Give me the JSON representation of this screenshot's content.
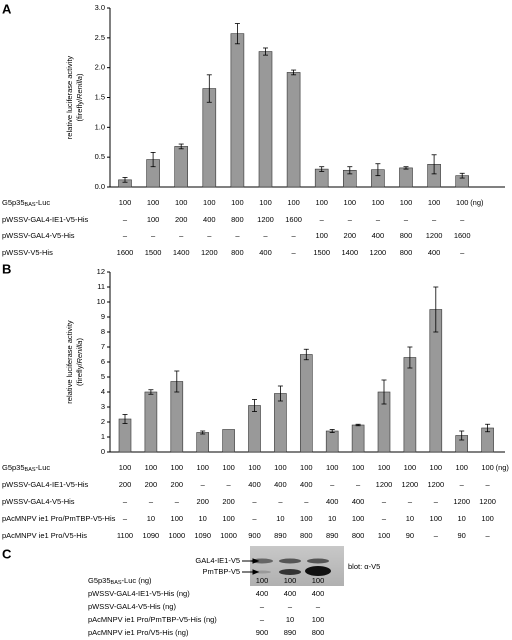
{
  "panel_labels": [
    "A",
    "B",
    "C"
  ],
  "chart_data": [
    {
      "type": "bar",
      "ylabel": "relative luciferase activity",
      "ylabel_parts": [
        "(firefly/",
        "Renilla",
        ")"
      ],
      "color": "#999999",
      "values": [
        0.12,
        0.46,
        0.68,
        1.65,
        2.57,
        2.27,
        1.92,
        0.3,
        0.28,
        0.29,
        0.32,
        0.38,
        0.19
      ],
      "errors": [
        0.04,
        0.12,
        0.04,
        0.23,
        0.17,
        0.06,
        0.04,
        0.04,
        0.06,
        0.1,
        0.02,
        0.16,
        0.04
      ],
      "ylim": [
        0,
        3
      ],
      "yticks": [
        {
          "value": 0,
          "label": "0.0"
        },
        0.5,
        {
          "value": 1,
          "label": "1.0"
        },
        1.5,
        {
          "value": 2,
          "label": "2.0"
        },
        2.5,
        {
          "value": 3,
          "label": "3.0"
        }
      ]
    },
    {
      "type": "bar",
      "ylabel": "relative luciferase activity",
      "ylabel_parts": [
        "(firefly/",
        "Renilla",
        ")"
      ],
      "color": "#999999",
      "values": [
        2.2,
        4.0,
        4.7,
        1.3,
        1.5,
        3.1,
        3.9,
        6.5,
        1.4,
        1.8,
        4.0,
        6.3,
        9.5,
        1.1,
        1.6
      ],
      "errors": [
        0.3,
        0.15,
        0.7,
        0.1,
        null,
        0.4,
        0.5,
        0.35,
        0.1,
        0.05,
        0.8,
        0.7,
        1.5,
        0.3,
        0.25
      ],
      "ylim": [
        0,
        12
      ],
      "yticks": [
        0,
        1,
        2,
        3,
        4,
        5,
        6,
        7,
        8,
        9,
        10,
        11,
        12
      ]
    }
  ],
  "tables": [
    {
      "unit": "(ng)",
      "rows": [
        {
          "label": "G5p35",
          "sub": "BAS",
          "post": "-Luc",
          "cells": [
            100,
            100,
            100,
            100,
            100,
            100,
            100,
            100,
            100,
            100,
            100,
            100,
            100
          ]
        },
        {
          "label": "pWSSV-GAL4-IE1-V5-His",
          "cells": [
            "–",
            100,
            200,
            400,
            800,
            1200,
            1600,
            "–",
            "–",
            "–",
            "–",
            "–",
            "–"
          ]
        },
        {
          "label": "pWSSV-GAL4-V5-His",
          "cells": [
            "–",
            "–",
            "–",
            "–",
            "–",
            "–",
            "–",
            100,
            200,
            400,
            800,
            1200,
            1600
          ]
        },
        {
          "label": "pWSSV-V5-His",
          "cells": [
            1600,
            1500,
            1400,
            1200,
            800,
            400,
            "–",
            1500,
            1400,
            1200,
            800,
            400,
            "–"
          ]
        }
      ]
    },
    {
      "unit": "(ng)",
      "rows": [
        {
          "label": "G5p35",
          "sub": "BAS",
          "post": "-Luc",
          "cells": [
            100,
            100,
            100,
            100,
            100,
            100,
            100,
            100,
            100,
            100,
            100,
            100,
            100,
            100,
            100
          ]
        },
        {
          "label": "pWSSV-GAL4-IE1-V5-His",
          "cells": [
            200,
            200,
            200,
            "–",
            "–",
            400,
            400,
            400,
            "–",
            "–",
            1200,
            1200,
            1200,
            "–",
            "–"
          ]
        },
        {
          "label": "pWSSV-GAL4-V5-His",
          "cells": [
            "–",
            "–",
            "–",
            200,
            200,
            "–",
            "–",
            "–",
            400,
            400,
            "–",
            "–",
            "–",
            1200,
            1200
          ]
        },
        {
          "label": "pAcMNPV ie1 Pro/PmTBP-V5-His",
          "cells": [
            "–",
            10,
            100,
            10,
            100,
            "–",
            10,
            100,
            10,
            100,
            "–",
            10,
            100,
            10,
            100
          ]
        },
        {
          "label": "pAcMNPV ie1 Pro/V5-His",
          "cells": [
            1100,
            1090,
            1000,
            1090,
            1000,
            900,
            890,
            800,
            890,
            800,
            100,
            90,
            "–",
            90,
            "–"
          ]
        }
      ]
    },
    {
      "rows": [
        {
          "label": "G5p35",
          "sub": "BAS",
          "post": "-Luc (ng)",
          "cells": [
            100,
            100,
            100
          ]
        },
        {
          "label": "pWSSV-GAL4-IE1-V5-His  (ng)",
          "cells": [
            400,
            400,
            400
          ]
        },
        {
          "label": "pWSSV-GAL4-V5-His (ng)",
          "cells": [
            "–",
            "–",
            "–"
          ]
        },
        {
          "label": "pAcMNPV ie1 Pro/PmTBP-V5-His  (ng)",
          "cells": [
            "–",
            10,
            100
          ]
        },
        {
          "label": "pAcMNPV ie1 Pro/V5-His (ng)",
          "cells": [
            900,
            890,
            800
          ]
        }
      ]
    }
  ],
  "blot": {
    "bands": [
      "GAL4-IE1-V5",
      "PmTBP-V5"
    ],
    "label": "blot: α-V5"
  }
}
